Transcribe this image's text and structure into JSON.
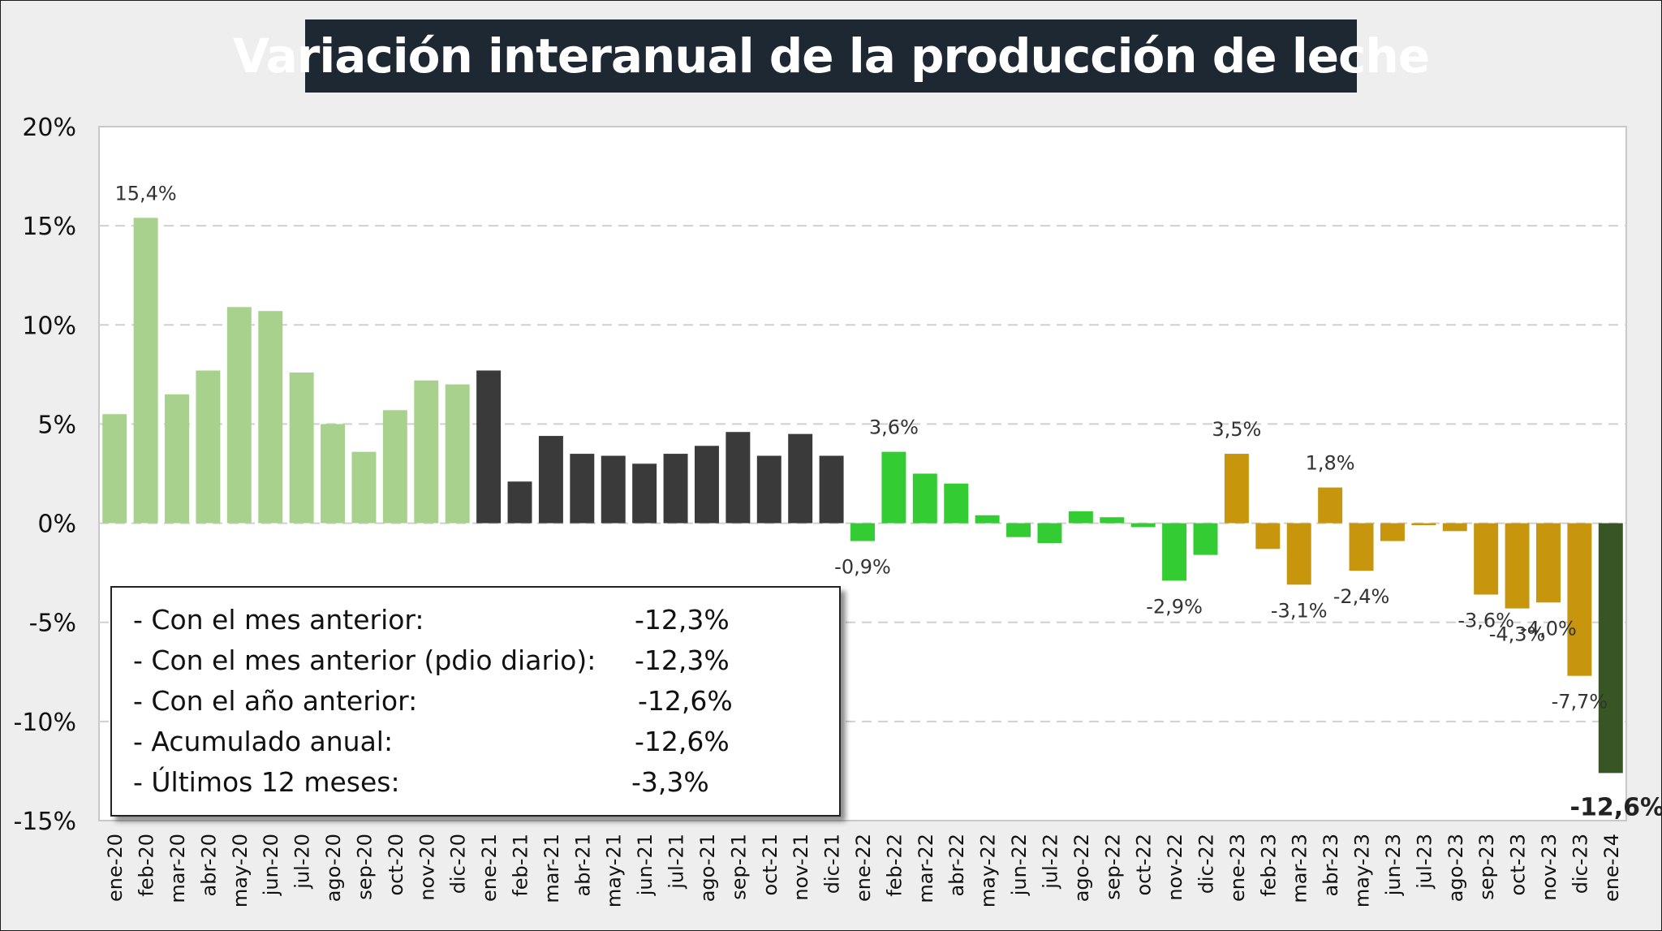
{
  "title": "Variación interanual de la producción de leche",
  "chart_data": {
    "type": "bar",
    "ylim": [
      -15,
      20
    ],
    "y_ticks": [
      "20%",
      "15%",
      "10%",
      "5%",
      "0%",
      "-5%",
      "-10%",
      "-15%"
    ],
    "grid": "dashed horizontal",
    "categories": [
      "ene-20",
      "feb-20",
      "mar-20",
      "abr-20",
      "may-20",
      "jun-20",
      "jul-20",
      "ago-20",
      "sep-20",
      "oct-20",
      "nov-20",
      "dic-20",
      "ene-21",
      "feb-21",
      "mar-21",
      "abr-21",
      "may-21",
      "jun-21",
      "jul-21",
      "ago-21",
      "sep-21",
      "oct-21",
      "nov-21",
      "dic-21",
      "ene-22",
      "feb-22",
      "mar-22",
      "abr-22",
      "may-22",
      "jun-22",
      "jul-22",
      "ago-22",
      "sep-22",
      "oct-22",
      "nov-22",
      "dic-22",
      "ene-23",
      "feb-23",
      "mar-23",
      "abr-23",
      "may-23",
      "jun-23",
      "jul-23",
      "ago-23",
      "sep-23",
      "oct-23",
      "nov-23",
      "dic-23",
      "ene-24"
    ],
    "values": [
      5.5,
      15.4,
      6.5,
      7.7,
      10.9,
      10.7,
      7.6,
      5.0,
      3.6,
      5.7,
      7.2,
      7.0,
      7.7,
      2.1,
      4.4,
      3.5,
      3.4,
      3.0,
      3.5,
      3.9,
      4.6,
      3.4,
      4.5,
      3.4,
      -0.9,
      3.6,
      2.5,
      2.0,
      0.4,
      -0.7,
      -1.0,
      0.6,
      0.3,
      -0.2,
      -2.9,
      -1.6,
      3.5,
      -1.3,
      -3.1,
      1.8,
      -2.4,
      -0.9,
      -0.1,
      -0.4,
      -3.6,
      -4.3,
      -4.0,
      -7.7,
      -12.6
    ],
    "bar_colors": {
      "2020": "#a9d18e",
      "2021": "#3a3a3a",
      "2022": "#33cc33",
      "2023": "#c8960c",
      "2024": "#375623"
    },
    "data_labels": [
      {
        "index": 1,
        "text": "15,4%"
      },
      {
        "index": 24,
        "text": "-0,9%"
      },
      {
        "index": 25,
        "text": "3,6%"
      },
      {
        "index": 34,
        "text": "-2,9%"
      },
      {
        "index": 36,
        "text": "3,5%"
      },
      {
        "index": 38,
        "text": "-3,1%"
      },
      {
        "index": 39,
        "text": "1,8%"
      },
      {
        "index": 40,
        "text": "-2,4%"
      },
      {
        "index": 44,
        "text": "-3,6%"
      },
      {
        "index": 45,
        "text": "-4,3%"
      },
      {
        "index": 46,
        "text": "-4,0%"
      },
      {
        "index": 47,
        "text": "-7,7%"
      },
      {
        "index": 48,
        "text": "-12,6%",
        "bold": true
      }
    ]
  },
  "summary": {
    "rows": [
      {
        "label": "- Con el mes anterior:",
        "value": "-12,3%"
      },
      {
        "label": "- Con el mes anterior (pdio diario):",
        "value": "-12,3%"
      },
      {
        "label": "- Con el año anterior:",
        "value": "-12,6%"
      },
      {
        "label": "- Acumulado anual:",
        "value": "-12,6%"
      },
      {
        "label": "- Últimos 12 meses:",
        "value": "-3,3%"
      }
    ]
  }
}
